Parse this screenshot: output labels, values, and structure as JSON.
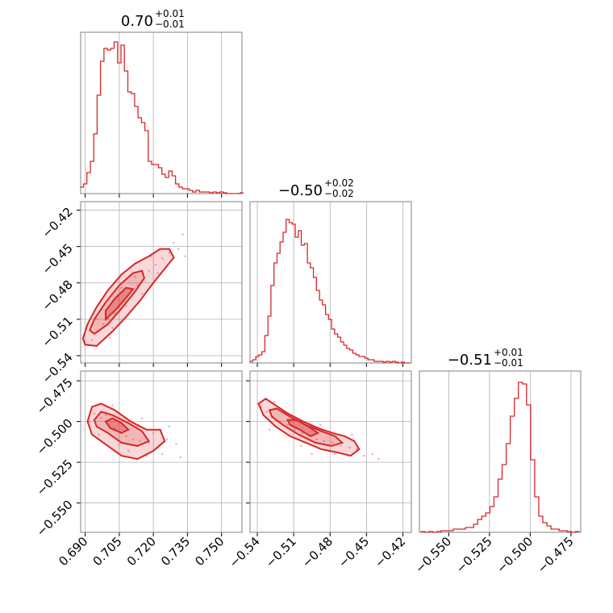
{
  "chart_data": {
    "type": "corner",
    "color": "#d62728",
    "grid": true,
    "parameters": [
      {
        "title": {
          "median": "0.70",
          "plus": "+0.01",
          "minus": "−0.01"
        },
        "range": [
          0.688,
          0.759
        ],
        "ticks": [
          0.69,
          0.705,
          0.72,
          0.735,
          0.75
        ],
        "tick_labels": [
          "0.690",
          "0.705",
          "0.720",
          "0.735",
          "0.750"
        ]
      },
      {
        "title": {
          "median": "−0.50",
          "plus": "+0.02",
          "minus": "−0.02"
        },
        "range": [
          -0.546,
          -0.413
        ],
        "ticks": [
          -0.54,
          -0.51,
          -0.48,
          -0.45,
          -0.42
        ],
        "tick_labels": [
          "−0.54",
          "−0.51",
          "−0.48",
          "−0.45",
          "−0.42"
        ]
      },
      {
        "title": {
          "median": "−0.51",
          "plus": "+0.01",
          "minus": "−0.01"
        },
        "range": [
          -0.568,
          -0.469
        ],
        "ticks": [
          -0.55,
          -0.525,
          -0.5,
          -0.475
        ],
        "tick_labels": [
          "−0.550",
          "−0.525",
          "−0.500",
          "−0.475"
        ]
      }
    ],
    "histograms": [
      {
        "param": 0,
        "bin_centers": [
          0.6885,
          0.69,
          0.6915,
          0.693,
          0.6945,
          0.696,
          0.6975,
          0.699,
          0.7005,
          0.702,
          0.7035,
          0.705,
          0.7065,
          0.708,
          0.7095,
          0.711,
          0.7125,
          0.714,
          0.7155,
          0.717,
          0.7185,
          0.72,
          0.7215,
          0.723,
          0.7245,
          0.726,
          0.7275,
          0.729,
          0.7305,
          0.732,
          0.7335,
          0.735,
          0.7365,
          0.738,
          0.7395,
          0.741,
          0.7425,
          0.744,
          0.7455,
          0.747,
          0.7485,
          0.75,
          0.7515,
          0.753,
          0.7545,
          0.756,
          0.7575,
          0.759
        ],
        "heights": [
          0.04,
          0.06,
          0.13,
          0.2,
          0.37,
          0.61,
          0.82,
          0.9,
          0.89,
          0.9,
          0.94,
          0.81,
          0.92,
          0.76,
          0.63,
          0.62,
          0.54,
          0.47,
          0.44,
          0.39,
          0.2,
          0.18,
          0.18,
          0.16,
          0.12,
          0.1,
          0.14,
          0.11,
          0.06,
          0.04,
          0.03,
          0.03,
          0.02,
          0.01,
          0.02,
          0.01,
          0.01,
          0.01,
          0.005,
          0.01,
          0.005,
          0.01,
          0.005,
          0.0,
          0.0,
          0.0,
          0.0,
          0.005
        ]
      },
      {
        "param": 1,
        "bin_centers": [
          -0.545,
          -0.5425,
          -0.54,
          -0.5375,
          -0.535,
          -0.5325,
          -0.53,
          -0.5275,
          -0.525,
          -0.5225,
          -0.52,
          -0.5175,
          -0.515,
          -0.5125,
          -0.51,
          -0.5075,
          -0.505,
          -0.5025,
          -0.5,
          -0.4975,
          -0.495,
          -0.4925,
          -0.49,
          -0.4875,
          -0.485,
          -0.4825,
          -0.48,
          -0.4775,
          -0.475,
          -0.4725,
          -0.47,
          -0.4675,
          -0.465,
          -0.4625,
          -0.46,
          -0.4575,
          -0.455,
          -0.4525,
          -0.45,
          -0.4475,
          -0.445,
          -0.4425,
          -0.44,
          -0.4375,
          -0.435,
          -0.4325,
          -0.43,
          -0.4275,
          -0.425,
          -0.4225,
          -0.42,
          -0.4175,
          -0.415
        ],
        "heights": [
          0.01,
          0.02,
          0.04,
          0.05,
          0.07,
          0.17,
          0.29,
          0.48,
          0.62,
          0.68,
          0.75,
          0.81,
          0.89,
          0.87,
          0.86,
          0.78,
          0.82,
          0.73,
          0.74,
          0.62,
          0.59,
          0.53,
          0.45,
          0.39,
          0.36,
          0.3,
          0.27,
          0.21,
          0.18,
          0.16,
          0.13,
          0.11,
          0.09,
          0.08,
          0.06,
          0.05,
          0.04,
          0.04,
          0.03,
          0.02,
          0.02,
          0.01,
          0.01,
          0.01,
          0.005,
          0.01,
          0.005,
          0.01,
          0.005,
          0.0,
          0.005,
          0.0,
          0.0
        ]
      },
      {
        "param": 2,
        "bin_centers": [
          -0.566,
          -0.5635,
          -0.561,
          -0.5585,
          -0.556,
          -0.5535,
          -0.551,
          -0.5485,
          -0.546,
          -0.5435,
          -0.541,
          -0.5385,
          -0.536,
          -0.5335,
          -0.531,
          -0.5285,
          -0.526,
          -0.5235,
          -0.521,
          -0.5185,
          -0.516,
          -0.5135,
          -0.511,
          -0.5085,
          -0.506,
          -0.5035,
          -0.501,
          -0.4985,
          -0.496,
          -0.4935,
          -0.491,
          -0.4885,
          -0.486,
          -0.4835,
          -0.481,
          -0.4785,
          -0.476,
          -0.4735,
          -0.471
        ],
        "heights": [
          0.005,
          0.0,
          0.005,
          0.0,
          0.005,
          0.01,
          0.01,
          0.01,
          0.02,
          0.02,
          0.02,
          0.03,
          0.03,
          0.05,
          0.08,
          0.1,
          0.12,
          0.16,
          0.22,
          0.33,
          0.42,
          0.55,
          0.72,
          0.83,
          0.93,
          0.92,
          0.79,
          0.45,
          0.22,
          0.1,
          0.06,
          0.04,
          0.02,
          0.02,
          0.01,
          0.01,
          0.005,
          0.0,
          0.005
        ]
      }
    ],
    "scatter_panels": [
      {
        "x_param": 0,
        "y_param": 1,
        "sample_points": [
          [
            0.693,
            -0.527
          ],
          [
            0.696,
            -0.52
          ],
          [
            0.698,
            -0.514
          ],
          [
            0.7,
            -0.51
          ],
          [
            0.703,
            -0.505
          ],
          [
            0.705,
            -0.5
          ],
          [
            0.707,
            -0.495
          ],
          [
            0.709,
            -0.49
          ],
          [
            0.711,
            -0.486
          ],
          [
            0.713,
            -0.482
          ],
          [
            0.716,
            -0.476
          ],
          [
            0.718,
            -0.47
          ],
          [
            0.721,
            -0.465
          ],
          [
            0.724,
            -0.46
          ],
          [
            0.727,
            -0.455
          ],
          [
            0.731,
            -0.452
          ],
          [
            0.733,
            -0.44
          ],
          [
            0.69,
            -0.531
          ],
          [
            0.699,
            -0.503
          ],
          [
            0.702,
            -0.517
          ],
          [
            0.708,
            -0.499
          ],
          [
            0.712,
            -0.475
          ],
          [
            0.715,
            -0.489
          ],
          [
            0.719,
            -0.458
          ],
          [
            0.729,
            -0.447
          ],
          [
            0.695,
            -0.51
          ],
          [
            0.706,
            -0.484
          ],
          [
            0.722,
            -0.472
          ],
          [
            0.734,
            -0.458
          ],
          [
            0.701,
            -0.525
          ]
        ],
        "contour_outer": [
          [
            0.69,
            -0.531
          ],
          [
            0.695,
            -0.532
          ],
          [
            0.702,
            -0.52
          ],
          [
            0.708,
            -0.508
          ],
          [
            0.714,
            -0.495
          ],
          [
            0.72,
            -0.48
          ],
          [
            0.726,
            -0.466
          ],
          [
            0.729,
            -0.459
          ],
          [
            0.727,
            -0.452
          ],
          [
            0.723,
            -0.452
          ],
          [
            0.718,
            -0.458
          ],
          [
            0.712,
            -0.464
          ],
          [
            0.706,
            -0.473
          ],
          [
            0.7,
            -0.486
          ],
          [
            0.695,
            -0.5
          ],
          [
            0.691,
            -0.514
          ],
          [
            0.689,
            -0.526
          ]
        ],
        "contour_inner": [
          [
            0.694,
            -0.522
          ],
          [
            0.7,
            -0.514
          ],
          [
            0.706,
            -0.501
          ],
          [
            0.712,
            -0.487
          ],
          [
            0.716,
            -0.476
          ],
          [
            0.715,
            -0.47
          ],
          [
            0.711,
            -0.472
          ],
          [
            0.705,
            -0.482
          ],
          [
            0.699,
            -0.496
          ],
          [
            0.694,
            -0.51
          ],
          [
            0.692,
            -0.519
          ]
        ],
        "contour_core": [
          [
            0.699,
            -0.51
          ],
          [
            0.704,
            -0.501
          ],
          [
            0.709,
            -0.49
          ],
          [
            0.711,
            -0.485
          ],
          [
            0.708,
            -0.484
          ],
          [
            0.703,
            -0.493
          ],
          [
            0.699,
            -0.503
          ]
        ]
      },
      {
        "x_param": 0,
        "y_param": 2,
        "sample_points": [
          [
            0.694,
            -0.495
          ],
          [
            0.697,
            -0.498
          ],
          [
            0.7,
            -0.502
          ],
          [
            0.703,
            -0.504
          ],
          [
            0.706,
            -0.507
          ],
          [
            0.708,
            -0.509
          ],
          [
            0.711,
            -0.511
          ],
          [
            0.714,
            -0.512
          ],
          [
            0.718,
            -0.513
          ],
          [
            0.722,
            -0.516
          ],
          [
            0.726,
            -0.511
          ],
          [
            0.73,
            -0.514
          ],
          [
            0.692,
            -0.5
          ],
          [
            0.699,
            -0.496
          ],
          [
            0.705,
            -0.514
          ],
          [
            0.709,
            -0.518
          ],
          [
            0.713,
            -0.503
          ],
          [
            0.717,
            -0.521
          ],
          [
            0.72,
            -0.507
          ],
          [
            0.724,
            -0.52
          ],
          [
            0.732,
            -0.522
          ],
          [
            0.696,
            -0.508
          ],
          [
            0.702,
            -0.49
          ],
          [
            0.715,
            -0.498
          ],
          [
            0.727,
            -0.503
          ]
        ],
        "contour_outer": [
          [
            0.691,
            -0.5
          ],
          [
            0.693,
            -0.491
          ],
          [
            0.697,
            -0.489
          ],
          [
            0.703,
            -0.493
          ],
          [
            0.71,
            -0.5
          ],
          [
            0.717,
            -0.505
          ],
          [
            0.723,
            -0.505
          ],
          [
            0.725,
            -0.512
          ],
          [
            0.72,
            -0.518
          ],
          [
            0.713,
            -0.523
          ],
          [
            0.706,
            -0.521
          ],
          [
            0.699,
            -0.514
          ],
          [
            0.693,
            -0.508
          ]
        ],
        "contour_inner": [
          [
            0.694,
            -0.499
          ],
          [
            0.697,
            -0.494
          ],
          [
            0.702,
            -0.496
          ],
          [
            0.709,
            -0.501
          ],
          [
            0.715,
            -0.506
          ],
          [
            0.718,
            -0.512
          ],
          [
            0.713,
            -0.515
          ],
          [
            0.706,
            -0.513
          ],
          [
            0.7,
            -0.507
          ],
          [
            0.695,
            -0.503
          ]
        ],
        "contour_core": [
          [
            0.699,
            -0.5
          ],
          [
            0.702,
            -0.498
          ],
          [
            0.706,
            -0.501
          ],
          [
            0.709,
            -0.505
          ],
          [
            0.706,
            -0.507
          ],
          [
            0.701,
            -0.504
          ]
        ]
      },
      {
        "x_param": 1,
        "y_param": 2,
        "sample_points": [
          [
            -0.537,
            -0.491
          ],
          [
            -0.532,
            -0.494
          ],
          [
            -0.527,
            -0.497
          ],
          [
            -0.521,
            -0.5
          ],
          [
            -0.515,
            -0.502
          ],
          [
            -0.509,
            -0.505
          ],
          [
            -0.503,
            -0.507
          ],
          [
            -0.497,
            -0.509
          ],
          [
            -0.491,
            -0.511
          ],
          [
            -0.485,
            -0.512
          ],
          [
            -0.478,
            -0.513
          ],
          [
            -0.471,
            -0.515
          ],
          [
            -0.464,
            -0.516
          ],
          [
            -0.458,
            -0.517
          ],
          [
            -0.452,
            -0.521
          ],
          [
            -0.445,
            -0.52
          ],
          [
            -0.526,
            -0.488
          ],
          [
            -0.512,
            -0.496
          ],
          [
            -0.504,
            -0.515
          ],
          [
            -0.488,
            -0.502
          ],
          [
            -0.476,
            -0.52
          ],
          [
            -0.462,
            -0.508
          ],
          [
            -0.44,
            -0.523
          ],
          [
            -0.53,
            -0.505
          ],
          [
            -0.495,
            -0.52
          ]
        ],
        "contour_outer": [
          [
            -0.539,
            -0.489
          ],
          [
            -0.533,
            -0.486
          ],
          [
            -0.525,
            -0.49
          ],
          [
            -0.515,
            -0.495
          ],
          [
            -0.502,
            -0.5
          ],
          [
            -0.49,
            -0.504
          ],
          [
            -0.478,
            -0.507
          ],
          [
            -0.468,
            -0.509
          ],
          [
            -0.46,
            -0.512
          ],
          [
            -0.456,
            -0.517
          ],
          [
            -0.463,
            -0.521
          ],
          [
            -0.474,
            -0.519
          ],
          [
            -0.487,
            -0.517
          ],
          [
            -0.5,
            -0.513
          ],
          [
            -0.513,
            -0.509
          ],
          [
            -0.525,
            -0.503
          ],
          [
            -0.535,
            -0.496
          ]
        ],
        "contour_inner": [
          [
            -0.53,
            -0.493
          ],
          [
            -0.524,
            -0.492
          ],
          [
            -0.513,
            -0.497
          ],
          [
            -0.5,
            -0.502
          ],
          [
            -0.487,
            -0.506
          ],
          [
            -0.476,
            -0.509
          ],
          [
            -0.47,
            -0.513
          ],
          [
            -0.479,
            -0.515
          ],
          [
            -0.492,
            -0.513
          ],
          [
            -0.506,
            -0.508
          ],
          [
            -0.519,
            -0.502
          ],
          [
            -0.528,
            -0.497
          ]
        ],
        "contour_core": [
          [
            -0.515,
            -0.499
          ],
          [
            -0.508,
            -0.499
          ],
          [
            -0.498,
            -0.503
          ],
          [
            -0.49,
            -0.507
          ],
          [
            -0.496,
            -0.509
          ],
          [
            -0.505,
            -0.505
          ],
          [
            -0.513,
            -0.502
          ]
        ]
      }
    ]
  }
}
